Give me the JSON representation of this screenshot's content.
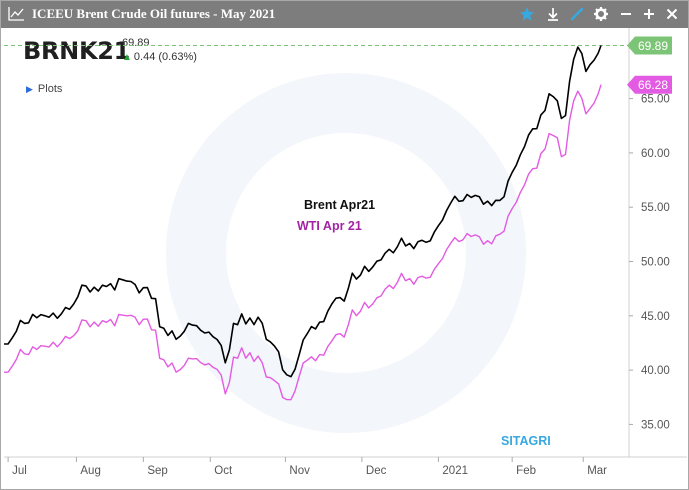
{
  "window": {
    "title": "ICEEU Brent Crude Oil futures - May 2021",
    "icons": [
      "chart-icon",
      "star-icon",
      "download-icon",
      "draw-icon",
      "gear-icon",
      "minimize-icon",
      "add-icon",
      "close-icon"
    ]
  },
  "header": {
    "symbol": "BRNK21",
    "last": "69.89",
    "change_arrow": "▲",
    "change": "0.44 (0.63%)",
    "plots_arrow": "▶",
    "plots_label": "Plots"
  },
  "colors": {
    "brent": "#000000",
    "wti": "#e35be3",
    "brent_tag": "#7cc576",
    "wti_tag": "#e35be3",
    "wti_legend_text": "#a323a3",
    "watermark_text": "#37a9e0",
    "titlebar": "#7d7d7d",
    "star": "#37a9e0"
  },
  "chart_data": {
    "type": "line",
    "x_labels": [
      "Jul",
      "Aug",
      "Sep",
      "Oct",
      "Nov",
      "Dec",
      "2021",
      "Feb",
      "Mar"
    ],
    "x_tick_index": [
      3,
      53,
      102,
      151,
      206,
      262,
      318,
      372,
      424
    ],
    "y_ticks": [
      "35.00",
      "40.00",
      "45.00",
      "50.00",
      "55.00",
      "60.00",
      "65.00"
    ],
    "ylim": [
      32,
      71.5
    ],
    "n_days": 448,
    "reference_line": 69.89,
    "series": [
      {
        "name": "Brent Apr21",
        "last_label": "69.89",
        "points": [
          [
            0,
            42.4
          ],
          [
            10,
            43.9
          ],
          [
            20,
            44.8
          ],
          [
            30,
            45.0
          ],
          [
            40,
            44.9
          ],
          [
            48,
            45.6
          ],
          [
            55,
            47.3
          ],
          [
            65,
            47.8
          ],
          [
            75,
            47.7
          ],
          [
            85,
            47.9
          ],
          [
            90,
            48.2
          ],
          [
            100,
            47.5
          ],
          [
            105,
            47.6
          ],
          [
            110,
            46.8
          ],
          [
            115,
            43.4
          ],
          [
            120,
            43.2
          ],
          [
            125,
            43.1
          ],
          [
            135,
            44.3
          ],
          [
            142,
            44.2
          ],
          [
            150,
            43.5
          ],
          [
            158,
            42.3
          ],
          [
            163,
            40.8
          ],
          [
            168,
            44.3
          ],
          [
            173,
            44.7
          ],
          [
            180,
            44.8
          ],
          [
            188,
            44.3
          ],
          [
            195,
            42.6
          ],
          [
            200,
            41.5
          ],
          [
            205,
            39.9
          ],
          [
            212,
            39.8
          ],
          [
            218,
            42.3
          ],
          [
            226,
            44.1
          ],
          [
            232,
            44.6
          ],
          [
            240,
            46.1
          ],
          [
            248,
            46.2
          ],
          [
            256,
            48.7
          ],
          [
            262,
            49.2
          ],
          [
            270,
            49.5
          ],
          [
            278,
            50.9
          ],
          [
            286,
            51.4
          ],
          [
            295,
            51.9
          ],
          [
            302,
            51.5
          ],
          [
            310,
            52.1
          ],
          [
            318,
            53.3
          ],
          [
            324,
            54.7
          ],
          [
            330,
            56.0
          ],
          [
            336,
            55.6
          ],
          [
            342,
            55.9
          ],
          [
            350,
            55.8
          ],
          [
            356,
            55.4
          ],
          [
            362,
            55.0
          ],
          [
            368,
            56.8
          ],
          [
            374,
            58.4
          ],
          [
            380,
            59.9
          ],
          [
            388,
            62.6
          ],
          [
            395,
            63.1
          ],
          [
            400,
            65.7
          ],
          [
            405,
            64.8
          ],
          [
            410,
            62.7
          ],
          [
            413,
            65.9
          ],
          [
            418,
            69.2
          ],
          [
            422,
            69.7
          ],
          [
            426,
            67.5
          ],
          [
            430,
            68.6
          ],
          [
            434,
            69.1
          ],
          [
            437,
            69.89
          ]
        ]
      },
      {
        "name": "WTI Apr 21",
        "last_label": "66.28",
        "points": [
          [
            0,
            39.8
          ],
          [
            10,
            41.3
          ],
          [
            20,
            41.8
          ],
          [
            30,
            42.2
          ],
          [
            40,
            42.3
          ],
          [
            48,
            42.9
          ],
          [
            55,
            44.1
          ],
          [
            65,
            44.6
          ],
          [
            75,
            44.4
          ],
          [
            85,
            44.6
          ],
          [
            90,
            45.0
          ],
          [
            100,
            44.6
          ],
          [
            105,
            44.7
          ],
          [
            110,
            43.9
          ],
          [
            115,
            40.5
          ],
          [
            120,
            40.3
          ],
          [
            125,
            40.1
          ],
          [
            135,
            41.1
          ],
          [
            142,
            41.2
          ],
          [
            150,
            40.6
          ],
          [
            158,
            39.6
          ],
          [
            163,
            37.9
          ],
          [
            168,
            41.2
          ],
          [
            173,
            41.6
          ],
          [
            180,
            41.6
          ],
          [
            188,
            40.6
          ],
          [
            195,
            39.3
          ],
          [
            200,
            38.4
          ],
          [
            205,
            37.5
          ],
          [
            212,
            37.8
          ],
          [
            218,
            40.3
          ],
          [
            226,
            41.2
          ],
          [
            232,
            41.6
          ],
          [
            240,
            42.7
          ],
          [
            248,
            42.9
          ],
          [
            256,
            45.3
          ],
          [
            262,
            45.9
          ],
          [
            270,
            46.1
          ],
          [
            278,
            47.6
          ],
          [
            286,
            48.1
          ],
          [
            295,
            48.7
          ],
          [
            302,
            48.2
          ],
          [
            310,
            48.8
          ],
          [
            318,
            49.8
          ],
          [
            324,
            51.1
          ],
          [
            330,
            52.2
          ],
          [
            336,
            52.0
          ],
          [
            342,
            52.3
          ],
          [
            350,
            52.1
          ],
          [
            356,
            51.8
          ],
          [
            362,
            51.9
          ],
          [
            368,
            53.6
          ],
          [
            374,
            55.0
          ],
          [
            380,
            56.4
          ],
          [
            388,
            58.9
          ],
          [
            395,
            59.6
          ],
          [
            400,
            62.0
          ],
          [
            405,
            61.4
          ],
          [
            410,
            59.1
          ],
          [
            413,
            62.4
          ],
          [
            418,
            65.3
          ],
          [
            422,
            65.5
          ],
          [
            426,
            63.6
          ],
          [
            430,
            64.5
          ],
          [
            434,
            65.3
          ],
          [
            437,
            66.28
          ]
        ]
      }
    ],
    "legend": {
      "brent_label": "Brent Apr21",
      "wti_label": "WTI Apr 21"
    },
    "watermark": "SITAGRI"
  }
}
